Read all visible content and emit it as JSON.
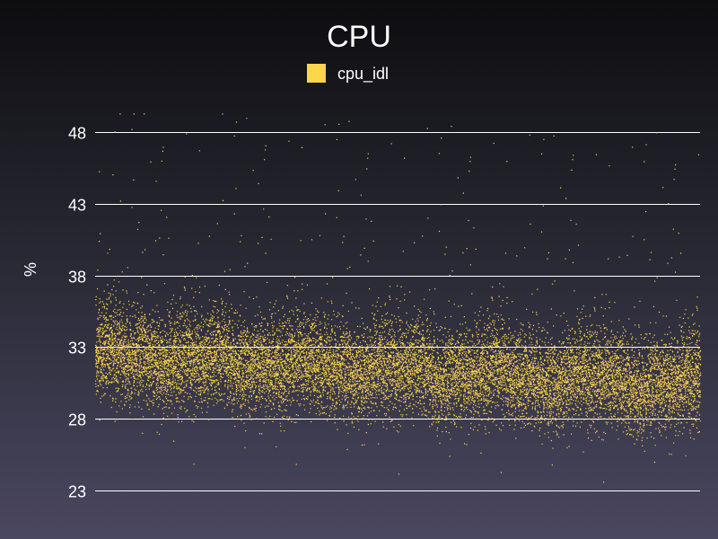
{
  "chart_data": {
    "type": "scatter",
    "title": "CPU",
    "ylabel": "%",
    "xlabel": "",
    "ylim": [
      23,
      50
    ],
    "yticks": [
      23,
      28,
      33,
      38,
      43,
      48
    ],
    "grid": true,
    "legend_position": "top-center",
    "series": [
      {
        "name": "cpu_idl",
        "color": "#ffd54a",
        "point_count": 15000,
        "trend_start": 32.3,
        "trend_end": 30.2,
        "typical_spread": 1.5,
        "value_range": [
          23.2,
          49.3
        ]
      }
    ]
  }
}
